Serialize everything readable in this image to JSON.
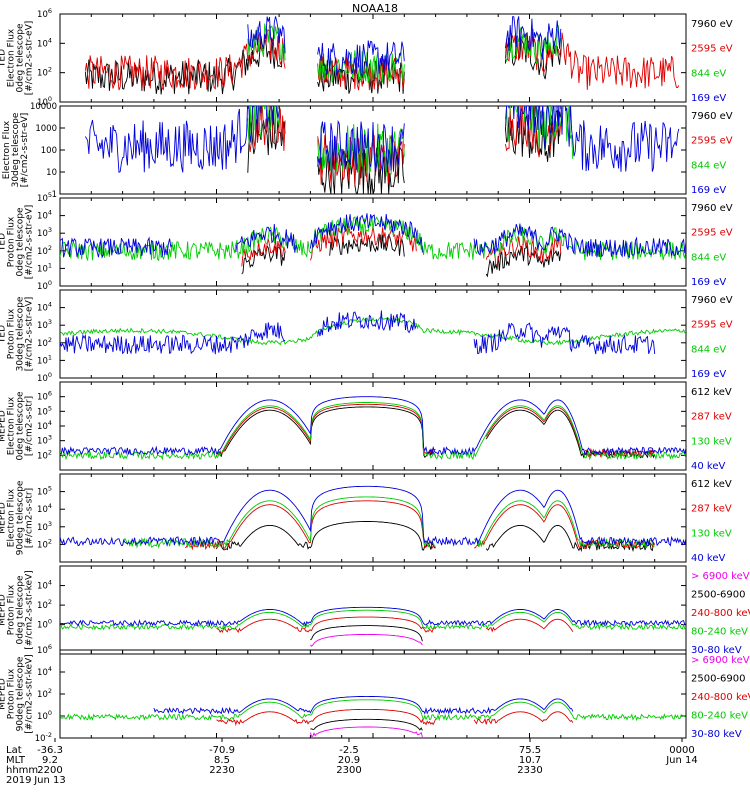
{
  "title": "NOAA18",
  "chart_data": [
    {
      "type": "line",
      "instrument": "TED",
      "ylabel": [
        "TED",
        "Electron Flux",
        "0deg telescope",
        "[#/cm2-s-str-eV]"
      ],
      "ylim": [
        1,
        1000000
      ],
      "scale": "log",
      "yticks": [
        {
          "v": 1,
          "b": "10",
          "e": "0"
        },
        {
          "v": 100,
          "b": "10",
          "e": "2"
        },
        {
          "v": 10000,
          "b": "10",
          "e": "4"
        },
        {
          "v": 1000000,
          "b": "10",
          "e": "6"
        }
      ],
      "series": [
        {
          "name": "7960 eV",
          "color": "#000000",
          "style": "spiky",
          "level": 50,
          "mask": [
            [
              0.04,
              0.36
            ],
            [
              0.41,
              0.55
            ],
            [
              0.71,
              0.8
            ]
          ]
        },
        {
          "name": "2595 eV",
          "color": "#dd0000",
          "style": "spiky",
          "level": 100,
          "mask": [
            [
              0.04,
              0.36
            ],
            [
              0.41,
              0.55
            ],
            [
              0.71,
              0.99
            ]
          ]
        },
        {
          "name": "844 eV",
          "color": "#00cc00",
          "style": "spiky",
          "level": 300,
          "mask": [
            [
              0.3,
              0.36
            ],
            [
              0.41,
              0.55
            ],
            [
              0.71,
              0.8
            ]
          ]
        },
        {
          "name": "169 eV",
          "color": "#0000dd",
          "style": "spiky",
          "level": 1000,
          "mask": [
            [
              0.3,
              0.36
            ],
            [
              0.41,
              0.55
            ],
            [
              0.71,
              0.8
            ]
          ]
        }
      ]
    },
    {
      "type": "line",
      "instrument": "",
      "ylabel": [
        "Electron Flux",
        "30deg telescope",
        "[#/cm2-s-str-eV]"
      ],
      "ylim": [
        1,
        10000
      ],
      "scale": "log",
      "yticks": [
        {
          "v": 1,
          "t": "1"
        },
        {
          "v": 10,
          "t": "10"
        },
        {
          "v": 100,
          "t": "100"
        },
        {
          "v": 1000,
          "t": "1000"
        },
        {
          "v": 10000,
          "t": "10000"
        }
      ],
      "series": [
        {
          "name": "7960 eV",
          "color": "#000000",
          "style": "spiky",
          "level": 10,
          "mask": [
            [
              0.3,
              0.36
            ],
            [
              0.41,
              0.55
            ],
            [
              0.71,
              0.8
            ]
          ]
        },
        {
          "name": "2595 eV",
          "color": "#dd0000",
          "style": "spiky",
          "level": 40,
          "mask": [
            [
              0.3,
              0.36
            ],
            [
              0.41,
              0.55
            ],
            [
              0.71,
              0.8
            ]
          ]
        },
        {
          "name": "844 eV",
          "color": "#00cc00",
          "style": "spiky",
          "level": 100,
          "mask": [
            [
              0.3,
              0.36
            ],
            [
              0.41,
              0.55
            ],
            [
              0.71,
              0.82
            ]
          ]
        },
        {
          "name": "169 eV",
          "color": "#0000dd",
          "style": "spiky",
          "level": 150,
          "mask": [
            [
              0.04,
              0.36
            ],
            [
              0.41,
              0.55
            ],
            [
              0.71,
              0.99
            ]
          ]
        }
      ]
    },
    {
      "type": "line",
      "instrument": "TED",
      "ylabel": [
        "TED",
        "Proton Flux",
        "0deg telescope",
        "[#/cm2-s-str-eV]"
      ],
      "ylim": [
        1,
        100000
      ],
      "scale": "log",
      "yticks": [
        {
          "v": 1,
          "b": "10",
          "e": "0"
        },
        {
          "v": 10,
          "b": "10",
          "e": "1"
        },
        {
          "v": 100,
          "b": "10",
          "e": "2"
        },
        {
          "v": 1000,
          "b": "10",
          "e": "3"
        },
        {
          "v": 10000,
          "b": "10",
          "e": "4"
        },
        {
          "v": 100000,
          "b": "10",
          "e": "5"
        }
      ],
      "series": [
        {
          "name": "7960 eV",
          "color": "#000000",
          "style": "noisy",
          "level": 10,
          "mask": [
            [
              0.29,
              0.36
            ],
            [
              0.43,
              0.55
            ],
            [
              0.68,
              0.8
            ]
          ]
        },
        {
          "name": "2595 eV",
          "color": "#dd0000",
          "style": "noisy",
          "level": 30,
          "mask": [
            [
              0.29,
              0.36
            ],
            [
              0.4,
              0.57
            ],
            [
              0.68,
              0.8
            ]
          ]
        },
        {
          "name": "844 eV",
          "color": "#00cc00",
          "style": "noisy",
          "level": 100,
          "mask": [
            [
              0.0,
              1.0
            ]
          ]
        },
        {
          "name": "169 eV",
          "color": "#0000dd",
          "style": "noisy",
          "level": 150,
          "mask": [
            [
              0.0,
              0.18
            ],
            [
              0.28,
              0.38
            ],
            [
              0.4,
              0.58
            ],
            [
              0.66,
              1.0
            ]
          ]
        }
      ]
    },
    {
      "type": "line",
      "instrument": "TED",
      "ylabel": [
        "TED",
        "Proton Flux",
        "30deg telescope",
        "[#/cm2-s-str-eV]"
      ],
      "ylim": [
        1,
        100000
      ],
      "scale": "log",
      "yticks": [
        {
          "v": 1,
          "b": "10",
          "e": "0"
        },
        {
          "v": 10,
          "b": "10",
          "e": "1"
        },
        {
          "v": 100,
          "b": "10",
          "e": "2"
        },
        {
          "v": 1000,
          "b": "10",
          "e": "3"
        },
        {
          "v": 10000,
          "b": "10",
          "e": "4"
        }
      ],
      "series": [
        {
          "name": "7960 eV",
          "color": "#000000",
          "style": "none",
          "level": 1,
          "mask": []
        },
        {
          "name": "2595 eV",
          "color": "#dd0000",
          "style": "none",
          "level": 1,
          "mask": []
        },
        {
          "name": "844 eV",
          "color": "#00cc00",
          "style": "smooth",
          "level": 500,
          "mask": [
            [
              0.0,
              1.0
            ]
          ]
        },
        {
          "name": "169 eV",
          "color": "#0000dd",
          "style": "noisy",
          "level": 80,
          "mask": [
            [
              0.0,
              0.36
            ],
            [
              0.41,
              0.57
            ],
            [
              0.66,
              0.95
            ]
          ]
        }
      ]
    },
    {
      "type": "line",
      "instrument": "MEPED",
      "ylabel": [
        "MEPED",
        "Electron Flux",
        "0deg telescope",
        "[#/cm2-s-str]"
      ],
      "ylim": [
        10,
        10000000
      ],
      "scale": "log",
      "yticks": [
        {
          "v": 100,
          "b": "10",
          "e": "2"
        },
        {
          "v": 1000,
          "b": "10",
          "e": "3"
        },
        {
          "v": 10000,
          "b": "10",
          "e": "4"
        },
        {
          "v": 100000,
          "b": "10",
          "e": "5"
        },
        {
          "v": 1000000,
          "b": "10",
          "e": "6"
        }
      ],
      "series": [
        {
          "name": "612 keV",
          "color": "#000000",
          "style": "dome",
          "level": 120,
          "peak": 200000,
          "mask": [
            [
              0.25,
              0.6
            ],
            [
              0.68,
              0.95
            ]
          ]
        },
        {
          "name": "287 keV",
          "color": "#dd0000",
          "style": "dome",
          "level": 150,
          "peak": 300000,
          "mask": [
            [
              0.25,
              0.6
            ],
            [
              0.68,
              0.95
            ]
          ]
        },
        {
          "name": "130 keV",
          "color": "#00cc00",
          "style": "dome",
          "level": 100,
          "peak": 400000,
          "mask": [
            [
              0.0,
              1.0
            ]
          ]
        },
        {
          "name": "40 keV",
          "color": "#0000dd",
          "style": "dome",
          "level": 200,
          "peak": 1000000,
          "mask": [
            [
              0.0,
              1.0
            ]
          ]
        }
      ]
    },
    {
      "type": "line",
      "instrument": "MEPED",
      "ylabel": [
        "MEPED",
        "Electron Flux",
        "90deg telescope",
        "[#/cm2-s-str]"
      ],
      "ylim": [
        10,
        1000000
      ],
      "scale": "log",
      "yticks": [
        {
          "v": 100,
          "b": "10",
          "e": "2"
        },
        {
          "v": 1000,
          "b": "10",
          "e": "3"
        },
        {
          "v": 10000,
          "b": "10",
          "e": "4"
        },
        {
          "v": 100000,
          "b": "10",
          "e": "5"
        }
      ],
      "series": [
        {
          "name": "612 keV",
          "color": "#000000",
          "style": "dome",
          "level": 80,
          "peak": 2000,
          "mask": [
            [
              0.25,
              0.6
            ],
            [
              0.68,
              0.95
            ]
          ]
        },
        {
          "name": "287 keV",
          "color": "#dd0000",
          "style": "dome",
          "level": 100,
          "peak": 30000,
          "mask": [
            [
              0.2,
              0.6
            ],
            [
              0.66,
              0.95
            ]
          ]
        },
        {
          "name": "130 keV",
          "color": "#00cc00",
          "style": "dome",
          "level": 120,
          "peak": 50000,
          "mask": [
            [
              0.1,
              0.6
            ],
            [
              0.66,
              0.95
            ]
          ]
        },
        {
          "name": "40 keV",
          "color": "#0000dd",
          "style": "dome",
          "level": 150,
          "peak": 200000,
          "mask": [
            [
              0.0,
              1.0
            ]
          ]
        }
      ]
    },
    {
      "type": "line",
      "instrument": "MEPED",
      "ylabel": [
        "MEPED",
        "Proton Flux",
        "0deg telescope",
        "[#/cm2-s-str-keV]"
      ],
      "ylim": [
        0.001,
        1000000
      ],
      "scale": "log",
      "yticks": [
        {
          "v": 1,
          "b": "10",
          "e": "0"
        },
        {
          "v": 100,
          "b": "10",
          "e": "2"
        },
        {
          "v": 10000,
          "b": "10",
          "e": "4"
        }
      ],
      "series": [
        {
          "name": "> 6900 keV",
          "color": "#ee00ee",
          "style": "dome",
          "level": 0.01,
          "peak": 0.1,
          "mask": [
            [
              0.4,
              0.58
            ]
          ]
        },
        {
          "name": "2500-6900",
          "color": "#000000",
          "style": "dome",
          "level": 0.03,
          "peak": 0.8,
          "mask": [
            [
              0.4,
              0.58
            ]
          ]
        },
        {
          "name": "240-800 keV",
          "color": "#dd0000",
          "style": "dome",
          "level": 0.3,
          "peak": 6,
          "mask": [
            [
              0.25,
              0.6
            ],
            [
              0.68,
              0.82
            ]
          ]
        },
        {
          "name": "80-240 keV",
          "color": "#00cc00",
          "style": "dome",
          "level": 0.6,
          "peak": 30,
          "mask": [
            [
              0.0,
              1.0
            ]
          ]
        },
        {
          "name": "30-80 keV",
          "color": "#0000dd",
          "style": "dome",
          "level": 1.5,
          "peak": 60,
          "mask": [
            [
              0.0,
              1.0
            ]
          ]
        }
      ]
    },
    {
      "type": "line",
      "instrument": "MEPED",
      "ylabel": [
        "MEPED",
        "Proton Flux",
        "90deg telescope",
        "[#/cm2-s-str-keV]"
      ],
      "ylim": [
        0.01,
        1000000
      ],
      "scale": "log",
      "yticks": [
        {
          "v": 0.01,
          "b": "10",
          "e": "-2"
        },
        {
          "v": 1,
          "b": "10",
          "e": "0"
        },
        {
          "v": 100,
          "b": "10",
          "e": "2"
        },
        {
          "v": 10000,
          "b": "10",
          "e": "4"
        },
        {
          "v": 1000000,
          "b": "10",
          "e": "6"
        }
      ],
      "series": [
        {
          "name": "> 6900 keV",
          "color": "#ee00ee",
          "style": "dome",
          "level": 0.02,
          "peak": 0.1,
          "mask": [
            [
              0.4,
              0.58
            ]
          ]
        },
        {
          "name": "2500-6900",
          "color": "#000000",
          "style": "dome",
          "level": 0.05,
          "peak": 0.5,
          "mask": [
            [
              0.4,
              0.58
            ]
          ]
        },
        {
          "name": "240-800 keV",
          "color": "#dd0000",
          "style": "dome",
          "level": 0.3,
          "peak": 4,
          "mask": [
            [
              0.25,
              0.6
            ],
            [
              0.66,
              0.82
            ]
          ]
        },
        {
          "name": "80-240 keV",
          "color": "#00cc00",
          "style": "dome",
          "level": 0.8,
          "peak": 30,
          "mask": [
            [
              0.0,
              1.0
            ]
          ]
        },
        {
          "name": "30-80 keV",
          "color": "#0000dd",
          "style": "dome",
          "level": 3,
          "peak": 60,
          "mask": [
            [
              0.15,
              0.82
            ]
          ]
        }
      ]
    }
  ],
  "footer": {
    "row_labels": [
      "Lat",
      "MLT",
      "hhmm",
      "2019"
    ],
    "columns": [
      {
        "lines": [
          "-36.3",
          "9.2",
          "2200",
          "Jun 13"
        ]
      },
      {
        "lines": [
          "-70.9",
          "8.5",
          "2230",
          ""
        ]
      },
      {
        "lines": [
          "-2.5",
          "20.9",
          "2300",
          ""
        ]
      },
      {
        "lines": [
          "75.5",
          "10.7",
          "2330",
          ""
        ]
      },
      {
        "lines": [
          "",
          "",
          "0000",
          "Jun 14"
        ]
      }
    ]
  }
}
